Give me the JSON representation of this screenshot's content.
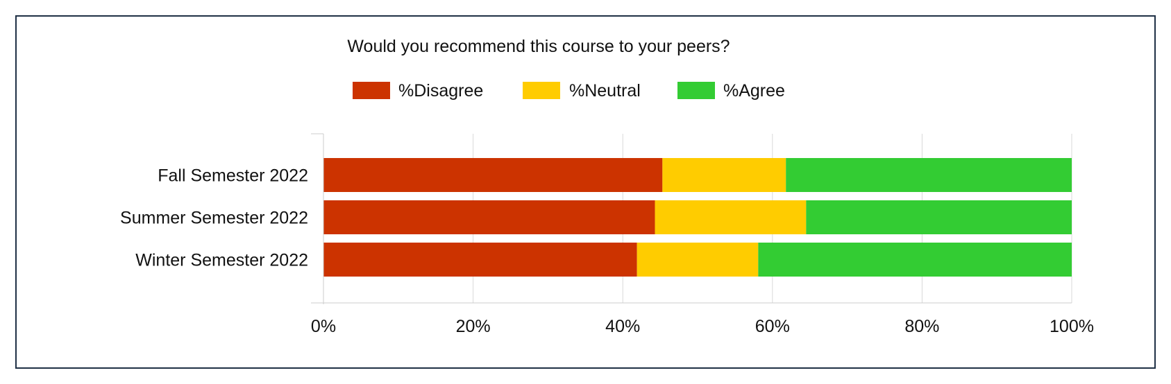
{
  "colors": {
    "background": "#ffffff",
    "frame_border": "#1f3045",
    "grid": "#d9d9d9",
    "axis": "#cccccc"
  },
  "chart_data": {
    "type": "bar",
    "orientation": "horizontal",
    "stacked": true,
    "title": "Would you recommend this course to your peers?",
    "categories": [
      "Fall Semester 2022",
      "Summer Semester 2022",
      "Winter Semester 2022"
    ],
    "series": [
      {
        "name": "%Disagree",
        "color": "#cc3300",
        "values": [
          45.3,
          44.3,
          41.9
        ]
      },
      {
        "name": "%Neutral",
        "color": "#ffcc00",
        "values": [
          16.5,
          20.2,
          16.2
        ]
      },
      {
        "name": "%Agree",
        "color": "#33cc33",
        "values": [
          38.2,
          35.5,
          41.9
        ]
      }
    ],
    "xlim": [
      0,
      100
    ],
    "xticks": [
      "0%",
      "20%",
      "40%",
      "60%",
      "80%",
      "100%"
    ],
    "xlabel": "",
    "ylabel": "",
    "grid": "vertical",
    "legend_position": "top-center"
  }
}
